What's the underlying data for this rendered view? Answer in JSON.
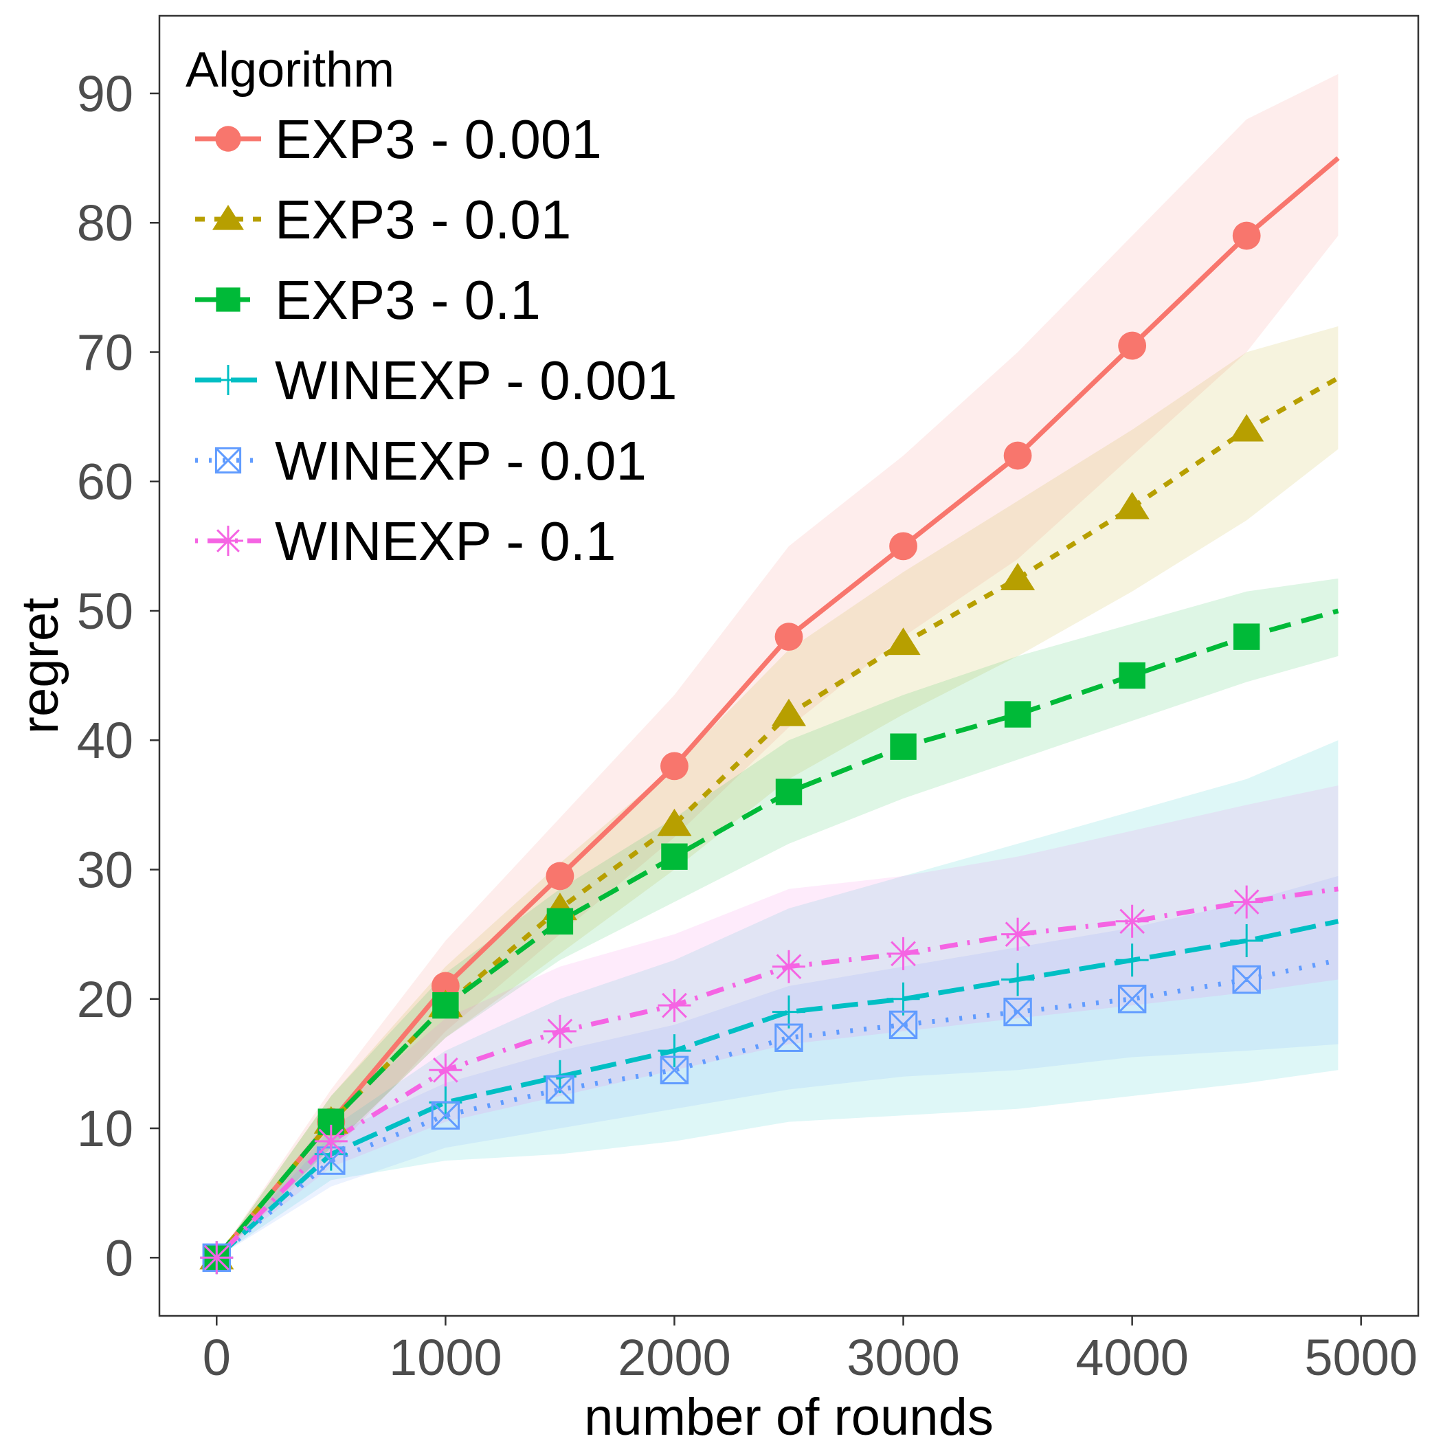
{
  "chart_data": {
    "type": "line",
    "xlabel": "number of rounds",
    "ylabel": "regret",
    "xlim": [
      -250,
      5250
    ],
    "ylim": [
      -4.5,
      96
    ],
    "xticks": [
      0,
      1000,
      2000,
      3000,
      4000,
      5000
    ],
    "yticks": [
      0,
      10,
      20,
      30,
      40,
      50,
      60,
      70,
      80,
      90
    ],
    "grid": false,
    "legend": {
      "title": "Algorithm",
      "position": "top-left",
      "entries": [
        "EXP3 - 0.001",
        "EXP3 - 0.01",
        "EXP3 - 0.1",
        "WINEXP - 0.001",
        "WINEXP - 0.01",
        "WINEXP - 0.1"
      ]
    },
    "x": [
      0,
      500,
      1000,
      1500,
      2000,
      2500,
      3000,
      3500,
      4000,
      4500,
      4900
    ],
    "series": [
      {
        "name": "EXP3 - 0.001",
        "color": "#F8766D",
        "dash": "solid",
        "marker": "circle",
        "values": [
          0,
          10.5,
          21,
          29.5,
          38,
          48,
          55,
          62,
          70.5,
          79,
          85
        ],
        "lower": [
          0,
          8,
          17.5,
          25,
          32.5,
          41,
          48,
          54,
          62,
          70,
          79
        ],
        "upper": [
          0,
          13,
          24.5,
          34,
          43.5,
          55,
          62,
          70,
          79,
          88,
          91.5
        ]
      },
      {
        "name": "EXP3 - 0.01",
        "color": "#B79F00",
        "dash": "dashed",
        "marker": "triangle",
        "values": [
          0,
          10.5,
          19.5,
          27,
          33.5,
          42,
          47.5,
          52.5,
          58,
          64,
          68
        ],
        "lower": [
          0,
          8.5,
          17,
          23.5,
          30,
          37,
          42,
          46.5,
          51.5,
          57,
          62.5
        ],
        "upper": [
          0,
          12.5,
          22.5,
          30.5,
          38,
          47,
          53,
          58.5,
          64,
          70,
          72
        ]
      },
      {
        "name": "EXP3 - 0.1",
        "color": "#00BA38",
        "dash": "longdash",
        "marker": "square",
        "values": [
          0,
          10.5,
          19.5,
          26,
          31,
          36,
          39.5,
          42,
          45,
          48,
          50
        ],
        "lower": [
          0,
          8.5,
          17,
          23,
          27.5,
          32,
          35.5,
          38.5,
          41.5,
          44.5,
          46.5
        ],
        "upper": [
          0,
          12.5,
          22,
          28.5,
          34,
          40,
          43.5,
          46.5,
          49,
          51.5,
          52.5
        ]
      },
      {
        "name": "WINEXP - 0.001",
        "color": "#00BFC4",
        "dash": "longdash2",
        "marker": "plus",
        "values": [
          0,
          8,
          12,
          14,
          16,
          19,
          20,
          21.5,
          23,
          24.5,
          26
        ],
        "lower": [
          0,
          6,
          7.5,
          8,
          9,
          10.5,
          11,
          11.5,
          12.5,
          13.5,
          14.5
        ],
        "upper": [
          0,
          10,
          16,
          20,
          23,
          27,
          29.5,
          32,
          34.5,
          37,
          40
        ]
      },
      {
        "name": "WINEXP - 0.01",
        "color": "#619CFF",
        "dash": "dotted",
        "marker": "boxx",
        "values": [
          0,
          7.5,
          11,
          13,
          14.5,
          17,
          18,
          19,
          20,
          21.5,
          23
        ],
        "lower": [
          0,
          5.5,
          8.5,
          10,
          11.5,
          13,
          14,
          14.5,
          15.5,
          16,
          16.5
        ],
        "upper": [
          0,
          9.5,
          13.5,
          16,
          18,
          21,
          22.5,
          24,
          25.5,
          27.5,
          29.5
        ]
      },
      {
        "name": "WINEXP - 0.1",
        "color": "#F564E3",
        "dash": "dotdash",
        "marker": "asterisk",
        "values": [
          0,
          9,
          14.5,
          17.5,
          19.5,
          22.5,
          23.5,
          25,
          26,
          27.5,
          28.5
        ],
        "lower": [
          0,
          7,
          10.5,
          12.5,
          14.5,
          16.5,
          17.5,
          18.5,
          19.5,
          20.5,
          21.5
        ],
        "upper": [
          0,
          11,
          18.5,
          22.5,
          25,
          28.5,
          29.5,
          31,
          33,
          35,
          36.5
        ]
      }
    ]
  }
}
